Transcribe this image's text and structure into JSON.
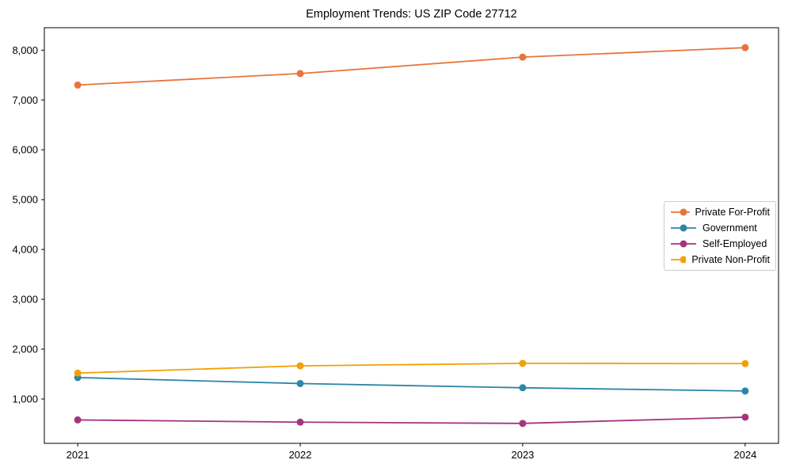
{
  "chart_data": {
    "type": "line",
    "title": "Employment Trends: US ZIP Code 27712",
    "x": [
      2021,
      2022,
      2023,
      2024
    ],
    "x_tick_labels": [
      "2021",
      "2022",
      "2023",
      "2024"
    ],
    "series": [
      {
        "name": "Private For-Profit",
        "color": "#E8743B",
        "values": [
          7300,
          7530,
          7860,
          8050
        ]
      },
      {
        "name": "Government",
        "color": "#2E86A5",
        "values": [
          1430,
          1310,
          1225,
          1160
        ]
      },
      {
        "name": "Self-Employed",
        "color": "#A3357F",
        "values": [
          580,
          535,
          510,
          635
        ]
      },
      {
        "name": "Private Non-Profit",
        "color": "#F2A104",
        "values": [
          1520,
          1665,
          1715,
          1710
        ]
      }
    ],
    "yticks": [
      1000,
      2000,
      3000,
      4000,
      5000,
      6000,
      7000,
      8000
    ],
    "ytick_labels": [
      "1,000",
      "2,000",
      "3,000",
      "4,000",
      "5,000",
      "6,000",
      "7,000",
      "8,000"
    ],
    "xlim": [
      2020.85,
      2024.15
    ],
    "ylim": [
      110,
      8450
    ],
    "grid": false,
    "legend_position": "center-right",
    "marker": "circle",
    "line_width": 1.8,
    "marker_radius": 4.5,
    "axis_color": "#000000",
    "legend_border_color": "#cccccc",
    "background_color": "#ffffff"
  }
}
